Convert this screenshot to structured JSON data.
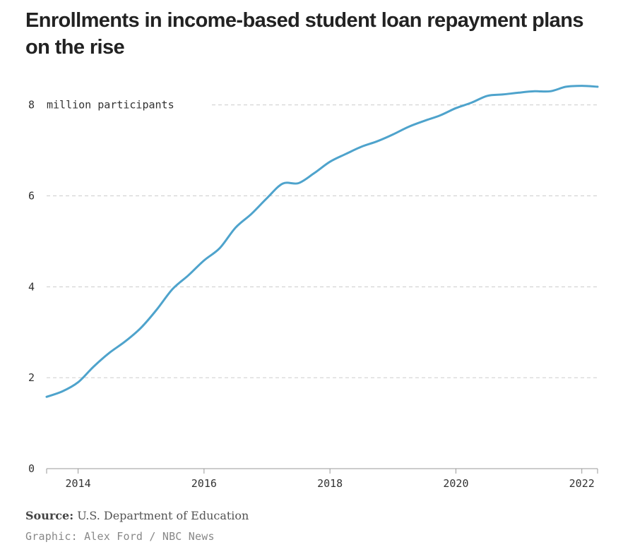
{
  "title": "Enrollments in income-based student loan repayment plans on the rise",
  "source_label": "Source:",
  "source_text": "U.S. Department of Education",
  "credit": "Graphic: Alex Ford / NBC News",
  "colors": {
    "line": "#4ea3cc",
    "grid": "#cccccc",
    "axis": "#999999"
  },
  "chart_data": {
    "type": "line",
    "title": "Enrollments in income-based student loan repayment plans on the rise",
    "ylabel": "million participants",
    "unit_annotation": "8 million participants",
    "ylim": [
      0,
      8.6
    ],
    "xlim": [
      2013.5,
      2022.25
    ],
    "grid": true,
    "x_ticks": [
      2014,
      2016,
      2018,
      2020,
      2022
    ],
    "y_ticks": [
      0,
      2,
      4,
      6,
      8
    ],
    "y_tick_labels": [
      "0",
      "2",
      "4",
      "6",
      "8"
    ],
    "x_tick_labels": [
      "2014",
      "2016",
      "2018",
      "2020",
      "2022"
    ],
    "series": [
      {
        "x": [
          2013.5,
          2013.75,
          2014.0,
          2014.25,
          2014.5,
          2014.75,
          2015.0,
          2015.25,
          2015.5,
          2015.75,
          2016.0,
          2016.25,
          2016.5,
          2016.75,
          2017.0,
          2017.25,
          2017.5,
          2017.75,
          2018.0,
          2018.25,
          2018.5,
          2018.75,
          2019.0,
          2019.25,
          2019.5,
          2019.75,
          2020.0,
          2020.25,
          2020.5,
          2020.75,
          2021.0,
          2021.25,
          2021.5,
          2021.75,
          2022.0,
          2022.25
        ],
        "values": [
          1.58,
          1.7,
          1.9,
          2.25,
          2.55,
          2.8,
          3.1,
          3.5,
          3.95,
          4.25,
          4.58,
          4.85,
          5.3,
          5.6,
          5.95,
          6.27,
          6.28,
          6.5,
          6.75,
          6.92,
          7.08,
          7.2,
          7.35,
          7.52,
          7.65,
          7.77,
          7.93,
          8.05,
          8.2,
          8.23,
          8.27,
          8.3,
          8.3,
          8.4,
          8.42,
          8.4
        ]
      }
    ]
  }
}
